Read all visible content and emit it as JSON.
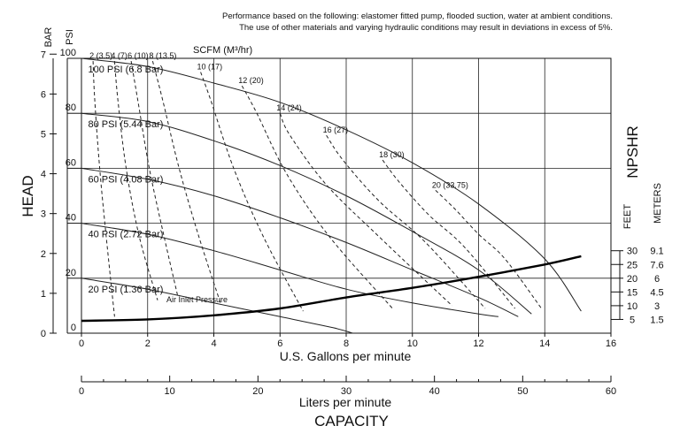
{
  "chart_data": {
    "type": "line",
    "notes": [
      "Performance based on the following: elastomer fitted pump, flooded suction, water at ambient conditions.",
      "The use of other materials and varying hydraulic conditions may result in deviations in excess of 5%."
    ],
    "xlabel": "U.S. Gallons per minute",
    "x2label": "Liters per minute",
    "bottom_label": "CAPACITY",
    "ylabel": "HEAD",
    "y_unit_bar": "BAR",
    "y_unit_psi": "PSI",
    "scfm_label": "SCFM (M³/hr)",
    "air_inlet_label": "Air Inlet Pressure",
    "npshr_label": "NPSHR",
    "npshr_unit_feet": "FEET",
    "npshr_unit_meters": "METERS",
    "xlim": [
      0,
      16
    ],
    "ylim_psi": [
      0,
      100
    ],
    "x_lpm_lim": [
      0,
      60
    ],
    "x_ticks": [
      0,
      2,
      4,
      6,
      8,
      10,
      12,
      14,
      16
    ],
    "x_lpm_ticks": [
      0,
      10,
      20,
      30,
      40,
      50,
      60
    ],
    "psi_ticks": [
      0,
      20,
      40,
      60,
      80,
      100
    ],
    "bar_ticks": [
      0,
      1,
      2,
      3,
      4,
      5,
      6,
      7
    ],
    "npshr_ticks": [
      {
        "feet": "5",
        "meters": "1.5",
        "psi": 5
      },
      {
        "feet": "10",
        "meters": "3",
        "psi": 10
      },
      {
        "feet": "15",
        "meters": "4.5",
        "psi": 15
      },
      {
        "feet": "20",
        "meters": "6",
        "psi": 20
      },
      {
        "feet": "25",
        "meters": "7.6",
        "psi": 25
      },
      {
        "feet": "30",
        "meters": "9.1",
        "psi": 30
      }
    ],
    "grid": true,
    "series": [
      {
        "name": "100 PSI (6.8 Bar)",
        "style": "solid",
        "x": [
          0,
          2,
          4,
          6,
          8,
          10,
          12,
          14,
          15.1
        ],
        "y": [
          100,
          97,
          91,
          84,
          74,
          62,
          47,
          27,
          8
        ]
      },
      {
        "name": "80 PSI (5.44 Bar)",
        "style": "solid",
        "x": [
          0,
          2,
          4,
          6,
          8,
          10,
          12,
          13.6
        ],
        "y": [
          80,
          77,
          70,
          61,
          50,
          37,
          23,
          7
        ]
      },
      {
        "name": "60 PSI (4.08 Bar)",
        "style": "solid",
        "x": [
          0,
          2,
          4,
          6,
          8,
          10,
          12,
          13.2
        ],
        "y": [
          60,
          56,
          50,
          42,
          33,
          23,
          13,
          6
        ]
      },
      {
        "name": "40 PSI (2.72 Bar)",
        "style": "solid",
        "x": [
          0,
          2,
          4,
          6,
          8,
          10,
          12,
          12.6
        ],
        "y": [
          40,
          36,
          30,
          23,
          16,
          11,
          7,
          6
        ]
      },
      {
        "name": "20 PSI (1.36 Bar)",
        "style": "solid",
        "x": [
          0,
          2,
          4,
          6,
          7.6,
          8.2
        ],
        "y": [
          20,
          16,
          11,
          6,
          2,
          0
        ]
      },
      {
        "name": "NPSHR",
        "style": "bold",
        "x": [
          0,
          2,
          4,
          6,
          8,
          10,
          12,
          14,
          15.1
        ],
        "y": [
          4.5,
          5,
          6.5,
          9,
          13,
          16.5,
          20.5,
          25,
          28
        ]
      }
    ],
    "scfm_lines": [
      {
        "label": "2 (3.5)",
        "x": [
          0.35,
          0.4,
          0.55,
          0.75,
          1.0
        ],
        "y": [
          99,
          85,
          60,
          35,
          6
        ]
      },
      {
        "label": "4 (7)",
        "x": [
          1.0,
          1.1,
          1.35,
          1.75,
          2.3
        ],
        "y": [
          99,
          85,
          60,
          35,
          12
        ]
      },
      {
        "label": "6 (10)",
        "x": [
          1.5,
          1.7,
          2.05,
          2.5,
          2.9
        ],
        "y": [
          99,
          85,
          60,
          35,
          14
        ]
      },
      {
        "label": "8 (13.5)",
        "x": [
          2.15,
          2.45,
          2.95,
          3.55,
          4.2
        ],
        "y": [
          99,
          85,
          60,
          35,
          11
        ]
      },
      {
        "label": "10 (17)",
        "x": [
          3.6,
          3.9,
          4.6,
          5.5,
          6.7
        ],
        "y": [
          95,
          85,
          60,
          35,
          8
        ]
      },
      {
        "label": "12 (20)",
        "x": [
          4.85,
          5.3,
          6.2,
          7.5,
          9.4
        ],
        "y": [
          90,
          80,
          58,
          35,
          9
        ]
      },
      {
        "label": "14 (24)",
        "x": [
          6.0,
          6.3,
          7.4,
          9.0,
          11.2
        ],
        "y": [
          80,
          72,
          54,
          35,
          10
        ]
      },
      {
        "label": "16 (27)",
        "x": [
          7.4,
          7.9,
          9.0,
          10.4,
          12.2
        ],
        "y": [
          72,
          63,
          48,
          33,
          9
        ]
      },
      {
        "label": "18 (30)",
        "x": [
          9.1,
          9.6,
          10.5,
          11.6,
          13.1
        ],
        "y": [
          63,
          55,
          43,
          31,
          9
        ]
      },
      {
        "label": "20 (33.75)",
        "x": [
          10.7,
          11.3,
          12.0,
          12.8,
          13.9
        ],
        "y": [
          52,
          45,
          36,
          27,
          9
        ]
      }
    ]
  }
}
